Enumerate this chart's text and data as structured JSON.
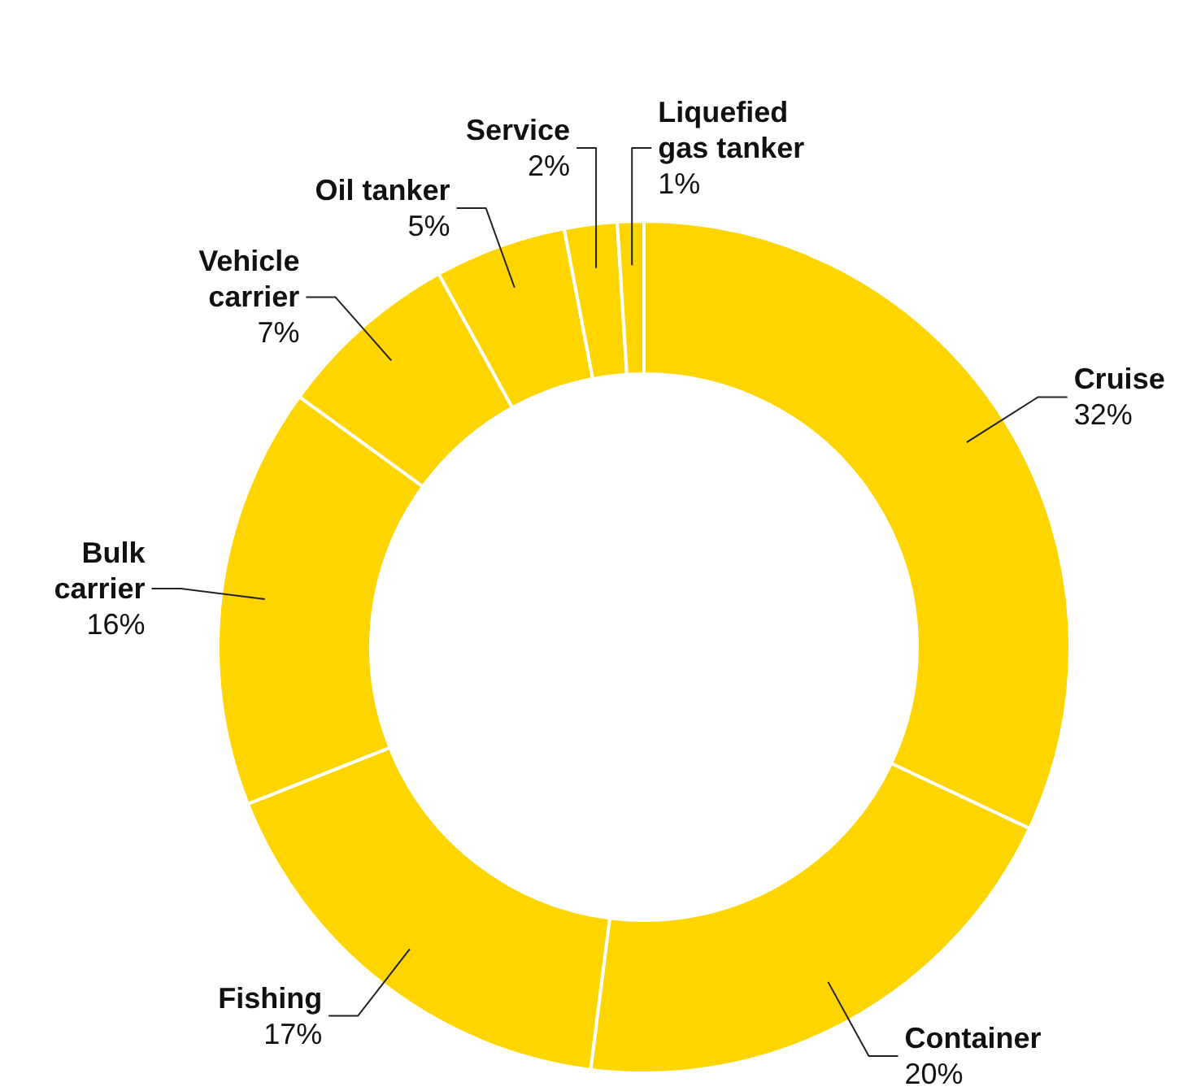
{
  "chart_data": {
    "type": "donut",
    "categories": [
      "Cruise",
      "Container",
      "Fishing",
      "Bulk carrier",
      "Vehicle carrier",
      "Oil tanker",
      "Service",
      "Liquefied gas tanker"
    ],
    "values": [
      32,
      20,
      17,
      16,
      7,
      5,
      2,
      1
    ],
    "colors": [
      "#ffd500",
      "#ffd500",
      "#ffd500",
      "#ffd500",
      "#ffd500",
      "#ffd500",
      "#ffd500",
      "#ffd500"
    ],
    "value_labels": [
      "32%",
      "20%",
      "17%",
      "16%",
      "7%",
      "5%",
      "2%",
      "1%"
    ]
  }
}
